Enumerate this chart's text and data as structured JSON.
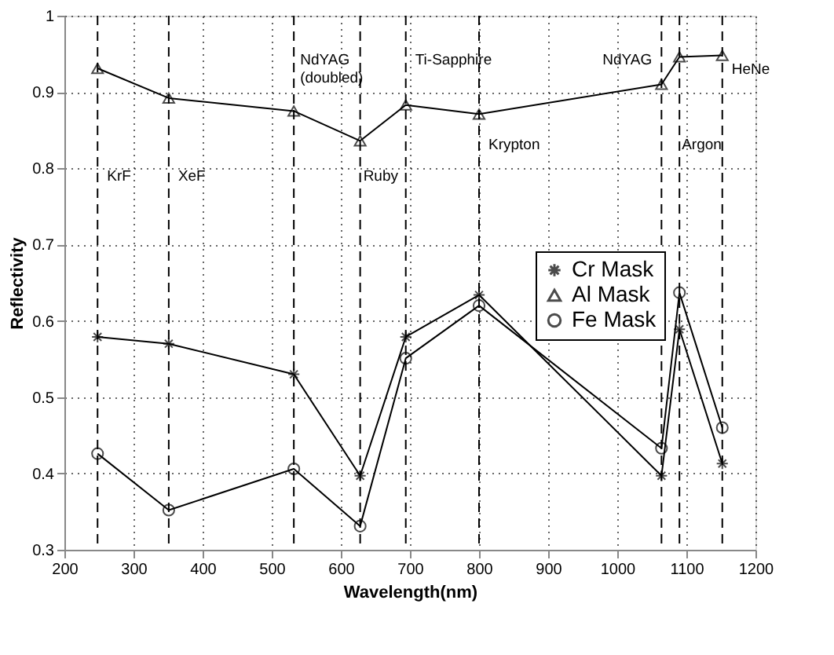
{
  "chart_data": {
    "type": "line",
    "xlabel": "Wavelength(nm)",
    "ylabel": "Reflectivity",
    "x": [
      248,
      351,
      532,
      628,
      694,
      800,
      1064,
      1090,
      1152
    ],
    "series": [
      {
        "name": "Cr Mask",
        "color": "#000000",
        "marker": "cross",
        "values": [
          0.579,
          0.57,
          0.53,
          0.397,
          0.579,
          0.634,
          0.397,
          0.589,
          0.413
        ]
      },
      {
        "name": "Al Mask",
        "color": "#000000",
        "marker": "triangle",
        "values": [
          0.931,
          0.892,
          0.875,
          0.836,
          0.883,
          0.871,
          0.91,
          0.946,
          0.948
        ]
      },
      {
        "name": "Fe Mask",
        "color": "#000000",
        "marker": "circle",
        "values": [
          0.426,
          0.352,
          0.406,
          0.331,
          0.551,
          0.62,
          0.433,
          0.637,
          0.46
        ]
      }
    ],
    "xlim": [
      200,
      1200
    ],
    "xticks": [
      200,
      300,
      400,
      500,
      600,
      700,
      800,
      900,
      1000,
      1100,
      1200
    ],
    "ylim": [
      0.3,
      1
    ],
    "yticks": [
      0.3,
      0.4,
      0.5,
      0.6,
      0.7,
      0.8,
      0.9,
      1
    ],
    "grid": true,
    "legend": "right",
    "line_style": "solid",
    "ref_lines": [
      {
        "axis": "x",
        "value": 248,
        "label": "KrF",
        "line_style": "dashed",
        "color": "#000000"
      },
      {
        "axis": "x",
        "value": 351,
        "label": "XeF",
        "line_style": "dashed",
        "color": "#000000"
      },
      {
        "axis": "x",
        "value": 532,
        "label": "NdYAG (doubled)",
        "line_style": "dashed",
        "color": "#000000"
      },
      {
        "axis": "x",
        "value": 628,
        "label": "Ruby",
        "line_style": "dashed",
        "color": "#000000"
      },
      {
        "axis": "x",
        "value": 694,
        "label": "Ti-Sapphire",
        "line_style": "dashed",
        "color": "#000000"
      },
      {
        "axis": "x",
        "value": 800,
        "label": "Krypton",
        "line_style": "dashed",
        "color": "#000000"
      },
      {
        "axis": "x",
        "value": 1064,
        "label": "NdYAG",
        "line_style": "dashed",
        "color": "#000000"
      },
      {
        "axis": "x",
        "value": 1090,
        "label": "Argon",
        "line_style": "dashed",
        "color": "#000000"
      },
      {
        "axis": "x",
        "value": 1152,
        "label": "HeNe",
        "line_style": "dashed",
        "color": "#000000"
      }
    ]
  }
}
